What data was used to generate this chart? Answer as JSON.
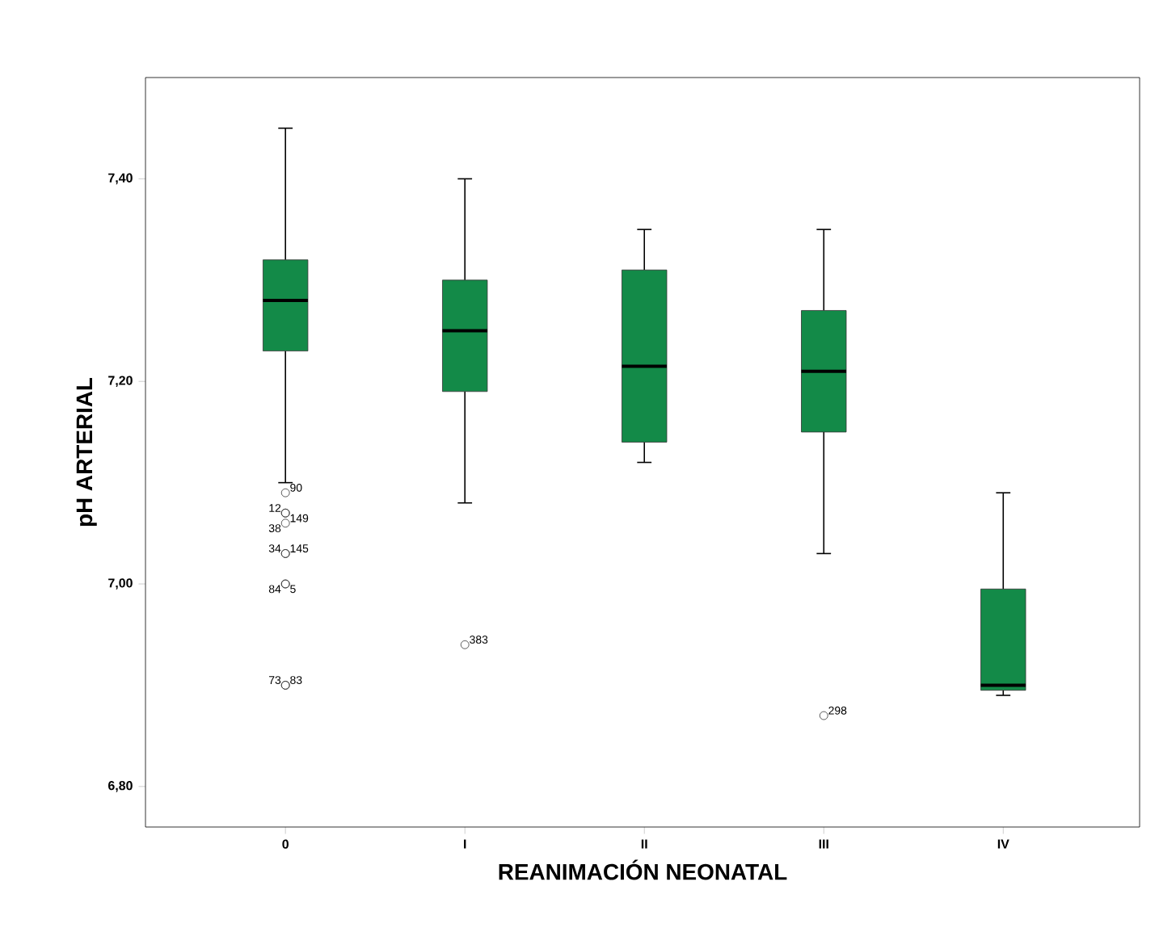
{
  "chart_data": {
    "type": "box",
    "xlabel": "REANIMACIÓN NEONATAL",
    "ylabel": "pH ARTERIAL",
    "categories": [
      "0",
      "I",
      "II",
      "III",
      "IV"
    ],
    "color": "#138a48",
    "boxes": [
      {
        "low": 7.1,
        "q1": 7.23,
        "median": 7.28,
        "q3": 7.32,
        "high": 7.45,
        "outliers": [
          7.09,
          7.07,
          7.07,
          7.06,
          7.03,
          7.03,
          7.0,
          7.0,
          6.9,
          6.9
        ]
      },
      {
        "low": 7.08,
        "q1": 7.19,
        "median": 7.25,
        "q3": 7.3,
        "high": 7.4,
        "outliers": [
          6.94
        ]
      },
      {
        "low": 7.12,
        "q1": 7.14,
        "median": 7.215,
        "q3": 7.31,
        "high": 7.35
      },
      {
        "low": 7.03,
        "q1": 7.15,
        "median": 7.21,
        "q3": 7.27,
        "high": 7.35,
        "outliers": [
          6.87
        ]
      },
      {
        "low": 6.89,
        "q1": 6.895,
        "median": 6.9,
        "q3": 6.995,
        "high": 7.09
      }
    ],
    "ylim": [
      6.76,
      7.5
    ],
    "yticks": [
      {
        "value": 6.8,
        "label": "6,80"
      },
      {
        "value": 7.0,
        "label": "7,00"
      },
      {
        "value": 7.2,
        "label": "7,20"
      },
      {
        "value": 7.4,
        "label": "7,40"
      }
    ],
    "annotations": [
      "90",
      "12",
      "149",
      "38",
      "145",
      "34",
      "5",
      "84",
      "83",
      "73",
      "383",
      "298"
    ]
  }
}
